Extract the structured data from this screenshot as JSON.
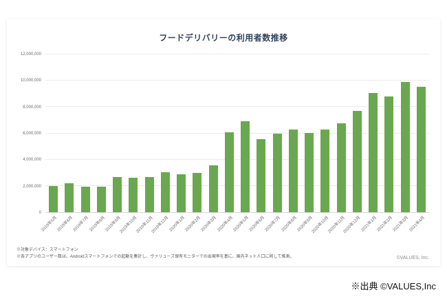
{
  "page": {
    "source_note": "※出典 ©VALUES,Inc"
  },
  "chart": {
    "title": "フードデリバリーの利用者数推移",
    "footnotes": [
      "※対象デバイス：スマートフォン",
      "※各アプリのユーザー数は、Androidスマートフォンでの起動を集計し、ヴァリューズ保有モニターでの出現率を基に、国内ネット人口に則して推測。"
    ],
    "copyright": "©VALUES, Inc."
  },
  "chart_data": {
    "type": "bar",
    "title": "フードデリバリーの利用者数推移",
    "categories": [
      "2019年5月",
      "2019年6月",
      "2019年7月",
      "2019年8月",
      "2019年9月",
      "2019年10月",
      "2019年11月",
      "2019年12月",
      "2020年1月",
      "2020年2月",
      "2020年3月",
      "2020年4月",
      "2020年5月",
      "2020年6月",
      "2020年7月",
      "2020年8月",
      "2020年9月",
      "2020年10月",
      "2020年11月",
      "2020年12月",
      "2021年1月",
      "2021年2月",
      "2021年3月",
      "2021年4月"
    ],
    "values": [
      2000000,
      2200000,
      1950000,
      1950000,
      2650000,
      2600000,
      2650000,
      3050000,
      2900000,
      3000000,
      3550000,
      6100000,
      6900000,
      5550000,
      6000000,
      6300000,
      6050000,
      6300000,
      6750000,
      7700000,
      9050000,
      8800000,
      9900000,
      9550000
    ],
    "xlabel": "",
    "ylabel": "",
    "ylim": [
      0,
      12000000
    ],
    "ytick_interval": 2000000,
    "bar_color": "#6aa84f",
    "grid": true,
    "legend": "none"
  }
}
